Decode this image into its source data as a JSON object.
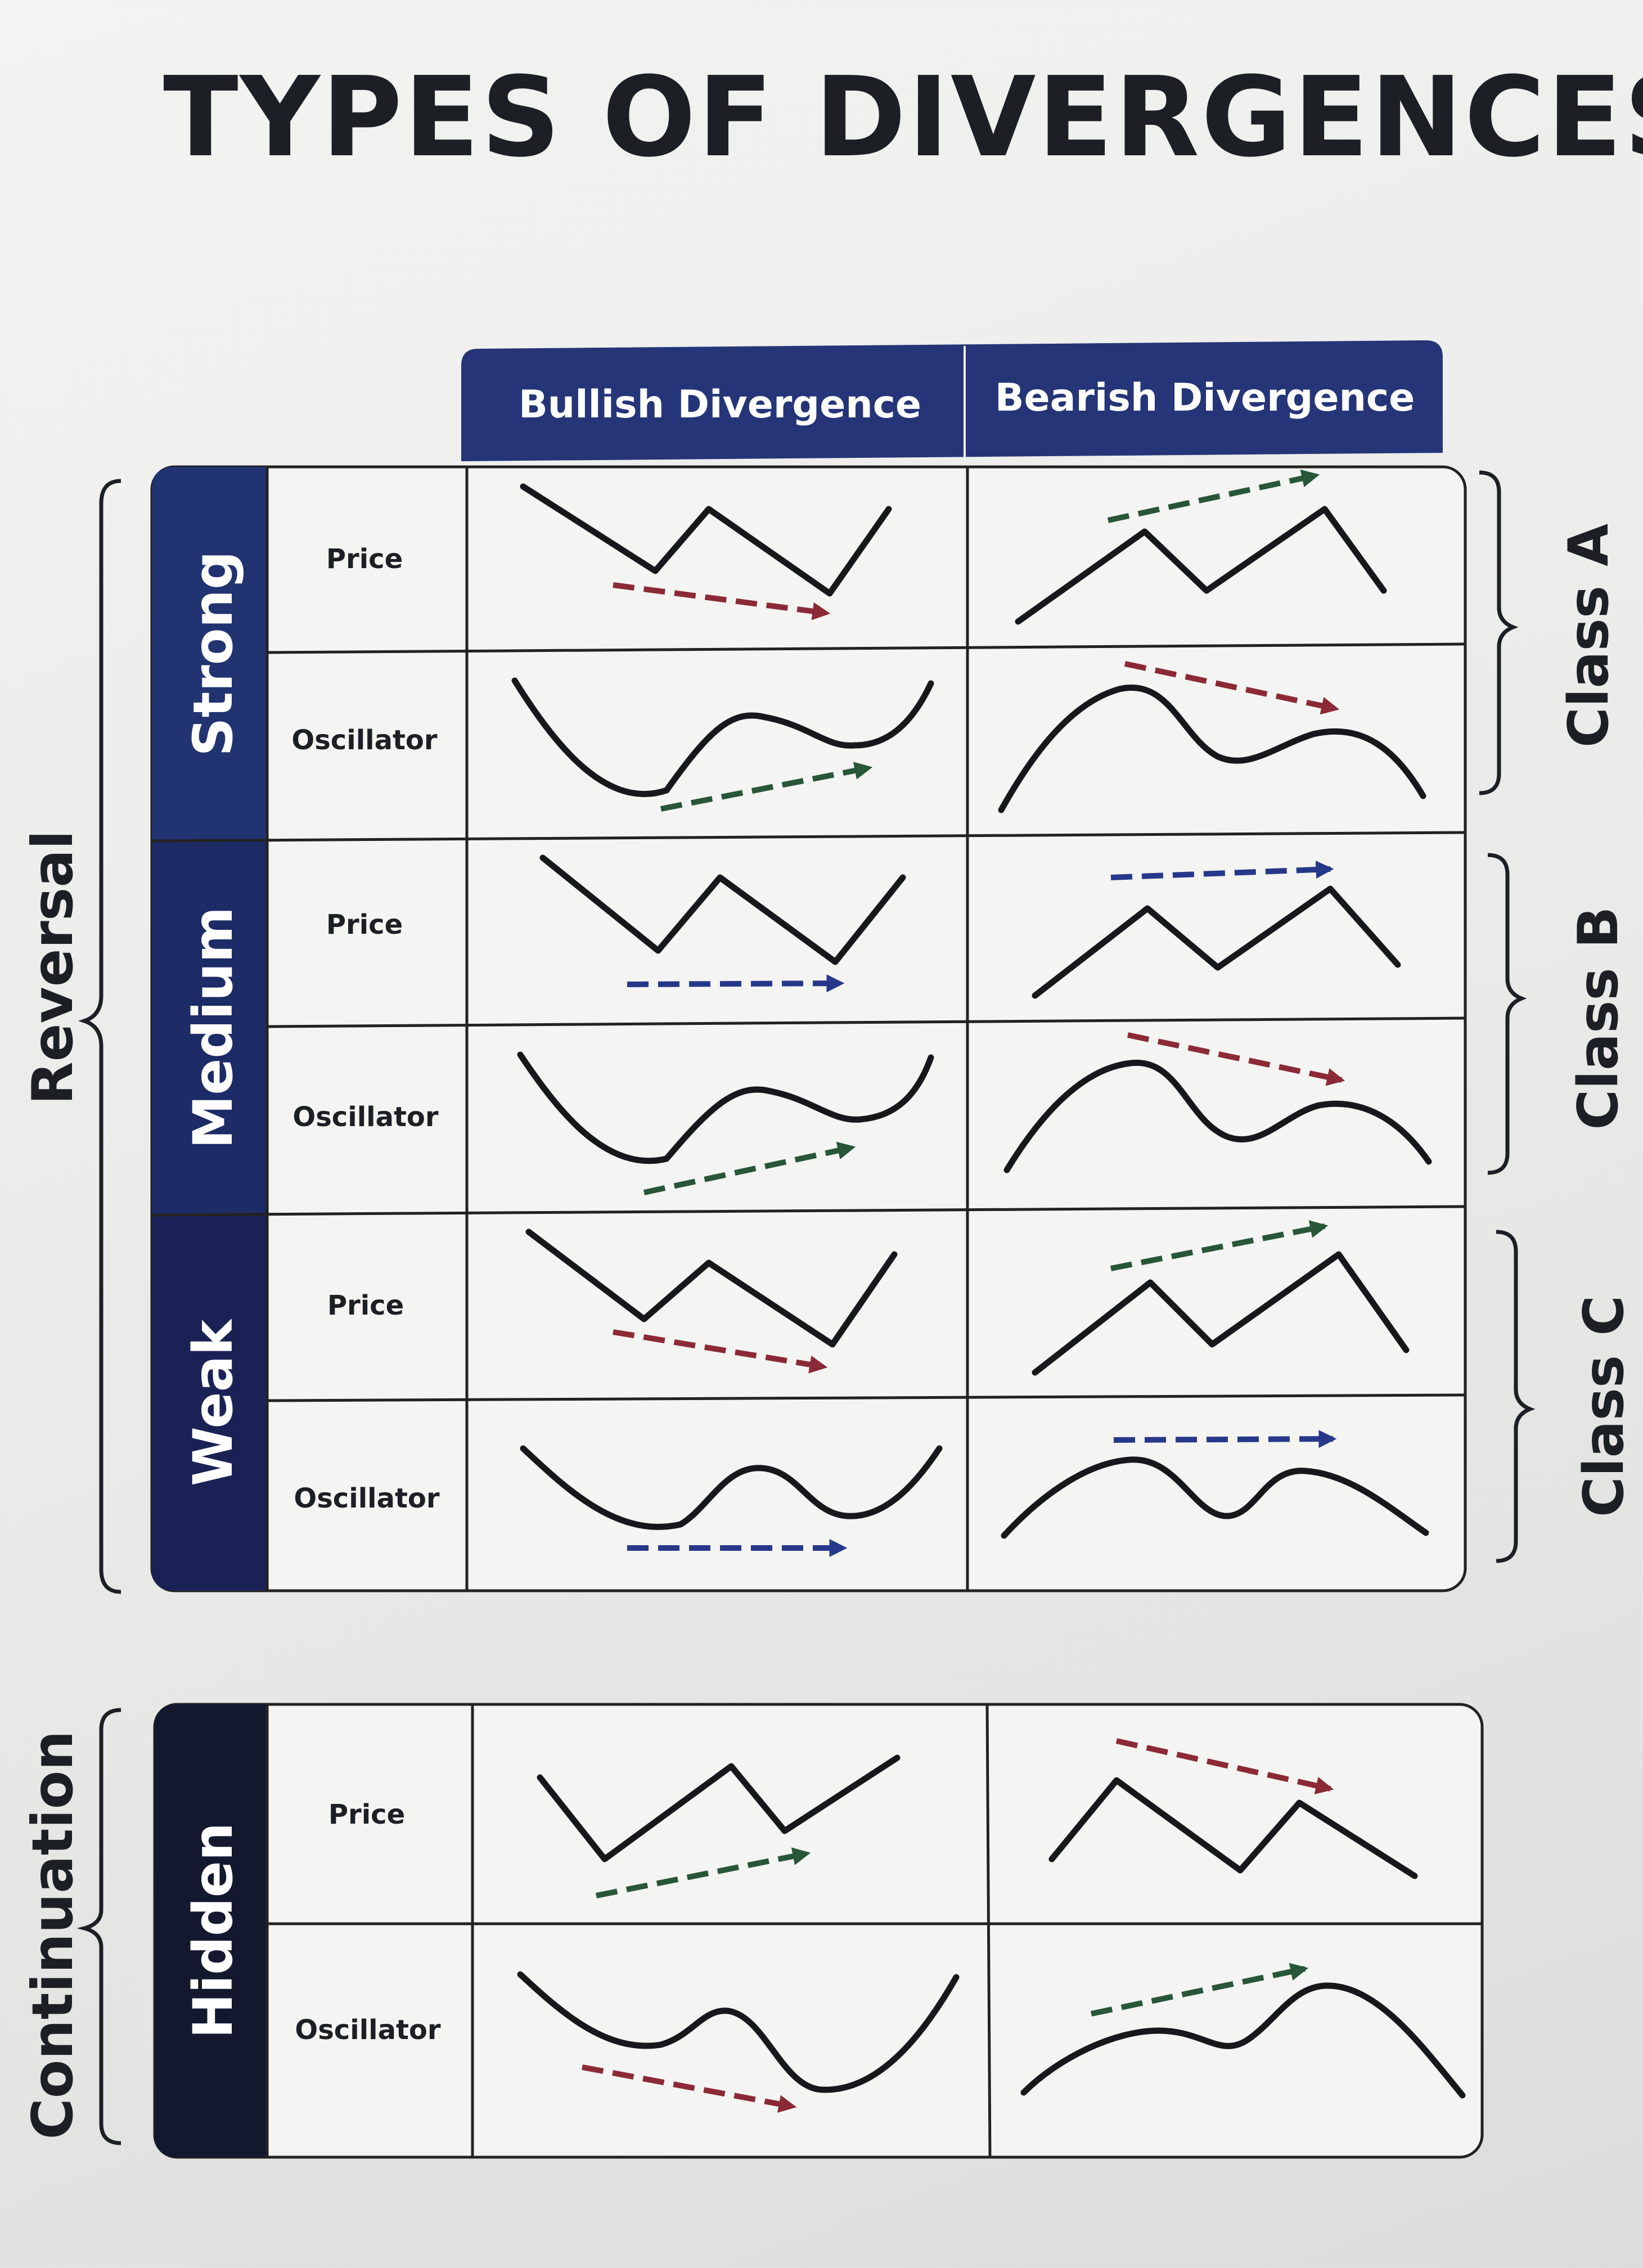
{
  "title": "TYPES OF DIVERGENCES",
  "columns": [
    "Bullish Divergence",
    "Bearish Divergence"
  ],
  "groups": [
    {
      "label": "Reversal"
    },
    {
      "label": "Continuation"
    }
  ],
  "strengths": [
    {
      "label": "Strong"
    },
    {
      "label": "Medium"
    },
    {
      "label": "Weak"
    },
    {
      "label": "Hidden"
    }
  ],
  "row_labels": [
    "Price",
    "Oscillator"
  ],
  "classes": [
    "Class A",
    "Class B",
    "Class C"
  ],
  "colors": {
    "header_bg": "#253578",
    "strong_bg": "#213370",
    "medium_bg": "#1d2b66",
    "weak_bg": "#1a2255",
    "hidden_bg": "#14182f",
    "up_arrow": "#275638",
    "down_arrow": "#8b2a36",
    "flat_arrow": "#27388a",
    "line": "#16181c"
  },
  "icons": {
    "bracket": "curly-brace",
    "arrow": "dashed-arrow",
    "line": "zigzag-or-wave"
  },
  "cells": [
    {
      "key": "strong-bullish-price",
      "arrow": "down"
    },
    {
      "key": "strong-bearish-price",
      "arrow": "up"
    },
    {
      "key": "strong-bullish-oscillator",
      "arrow": "up"
    },
    {
      "key": "strong-bearish-oscillator",
      "arrow": "down"
    },
    {
      "key": "medium-bullish-price",
      "arrow": "flat"
    },
    {
      "key": "medium-bearish-price",
      "arrow": "flat"
    },
    {
      "key": "medium-bullish-oscillator",
      "arrow": "up"
    },
    {
      "key": "medium-bearish-oscillator",
      "arrow": "down"
    },
    {
      "key": "weak-bullish-price",
      "arrow": "down"
    },
    {
      "key": "weak-bearish-price",
      "arrow": "up"
    },
    {
      "key": "weak-bullish-oscillator",
      "arrow": "flat"
    },
    {
      "key": "weak-bearish-oscillator",
      "arrow": "flat"
    },
    {
      "key": "hidden-bullish-price",
      "arrow": "up"
    },
    {
      "key": "hidden-bearish-price",
      "arrow": "down"
    },
    {
      "key": "hidden-bullish-oscillator",
      "arrow": "down"
    },
    {
      "key": "hidden-bearish-oscillator",
      "arrow": "up"
    }
  ]
}
